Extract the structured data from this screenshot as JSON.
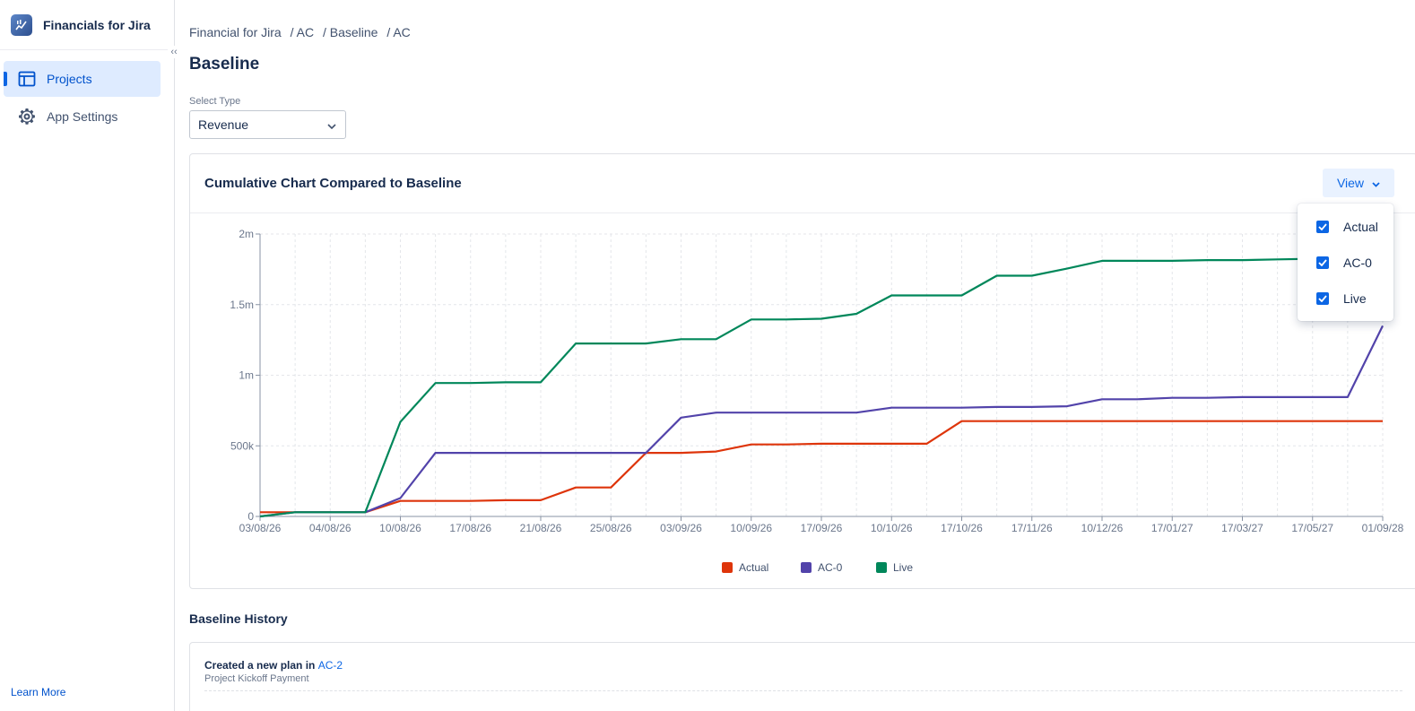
{
  "app": {
    "name": "Financials for Jira",
    "collapse_glyph": "‹‹"
  },
  "sidebar": {
    "items": [
      {
        "label": "Projects",
        "icon": "table-icon",
        "active": true
      },
      {
        "label": "App Settings",
        "icon": "gear-icon",
        "active": false
      }
    ],
    "learn_more": "Learn More"
  },
  "breadcrumb": [
    "Financial for Jira",
    "/ AC",
    "/ Baseline",
    "/ AC"
  ],
  "page_title": "Baseline",
  "select_type": {
    "label": "Select Type",
    "value": "Revenue"
  },
  "chart_card": {
    "title": "Cumulative Chart Compared to Baseline",
    "view_label": "View",
    "view_options": [
      {
        "label": "Actual",
        "checked": true
      },
      {
        "label": "AC-0",
        "checked": true
      },
      {
        "label": "Live",
        "checked": true
      }
    ]
  },
  "colors": {
    "actual": "#de350b",
    "ac0": "#5243aa",
    "live": "#00875a",
    "accent": "#0c66e4"
  },
  "chart_data": {
    "type": "line",
    "title": "Cumulative Chart Compared to Baseline",
    "xlabel": "",
    "ylabel": "",
    "ylim": [
      0,
      2000000
    ],
    "y_ticks": [
      {
        "v": 0,
        "label": "0"
      },
      {
        "v": 500000,
        "label": "500k"
      },
      {
        "v": 1000000,
        "label": "1m"
      },
      {
        "v": 1500000,
        "label": "1.5m"
      },
      {
        "v": 2000000,
        "label": "2m"
      }
    ],
    "x_tick_labels": [
      "03/08/26",
      "04/08/26",
      "10/08/26",
      "17/08/26",
      "21/08/26",
      "25/08/26",
      "03/09/26",
      "10/09/26",
      "17/09/26",
      "10/10/26",
      "17/10/26",
      "17/11/26",
      "10/12/26",
      "17/01/27",
      "17/03/27",
      "17/05/27",
      "01/09/28"
    ],
    "grid": true,
    "legend_position": "bottom",
    "series": [
      {
        "name": "Actual",
        "color": "#de350b",
        "values": [
          30000,
          30000,
          30000,
          30000,
          110000,
          110000,
          110000,
          115000,
          115000,
          205000,
          205000,
          450000,
          450000,
          460000,
          510000,
          510000,
          515000,
          515000,
          515000,
          515000,
          675000,
          675000,
          675000,
          675000,
          675000,
          675000,
          675000,
          675000,
          675000,
          675000,
          675000,
          675000,
          675000
        ]
      },
      {
        "name": "AC-0",
        "color": "#5243aa",
        "values": [
          0,
          30000,
          30000,
          30000,
          130000,
          450000,
          450000,
          450000,
          450000,
          450000,
          450000,
          450000,
          700000,
          735000,
          735000,
          735000,
          735000,
          735000,
          770000,
          770000,
          770000,
          775000,
          775000,
          780000,
          830000,
          830000,
          840000,
          840000,
          845000,
          845000,
          845000,
          845000,
          1350000
        ]
      },
      {
        "name": "Live",
        "color": "#00875a",
        "values": [
          0,
          30000,
          30000,
          30000,
          670000,
          945000,
          945000,
          950000,
          950000,
          1225000,
          1225000,
          1225000,
          1255000,
          1255000,
          1395000,
          1395000,
          1400000,
          1435000,
          1565000,
          1565000,
          1565000,
          1705000,
          1705000,
          1755000,
          1810000,
          1810000,
          1810000,
          1815000,
          1815000,
          1820000,
          1825000,
          1830000,
          1835000
        ]
      }
    ]
  },
  "history": {
    "title": "Baseline History",
    "entries": [
      {
        "prefix": "Created a new plan in",
        "link": "AC-2",
        "subtitle": "Project Kickoff Payment"
      }
    ]
  }
}
